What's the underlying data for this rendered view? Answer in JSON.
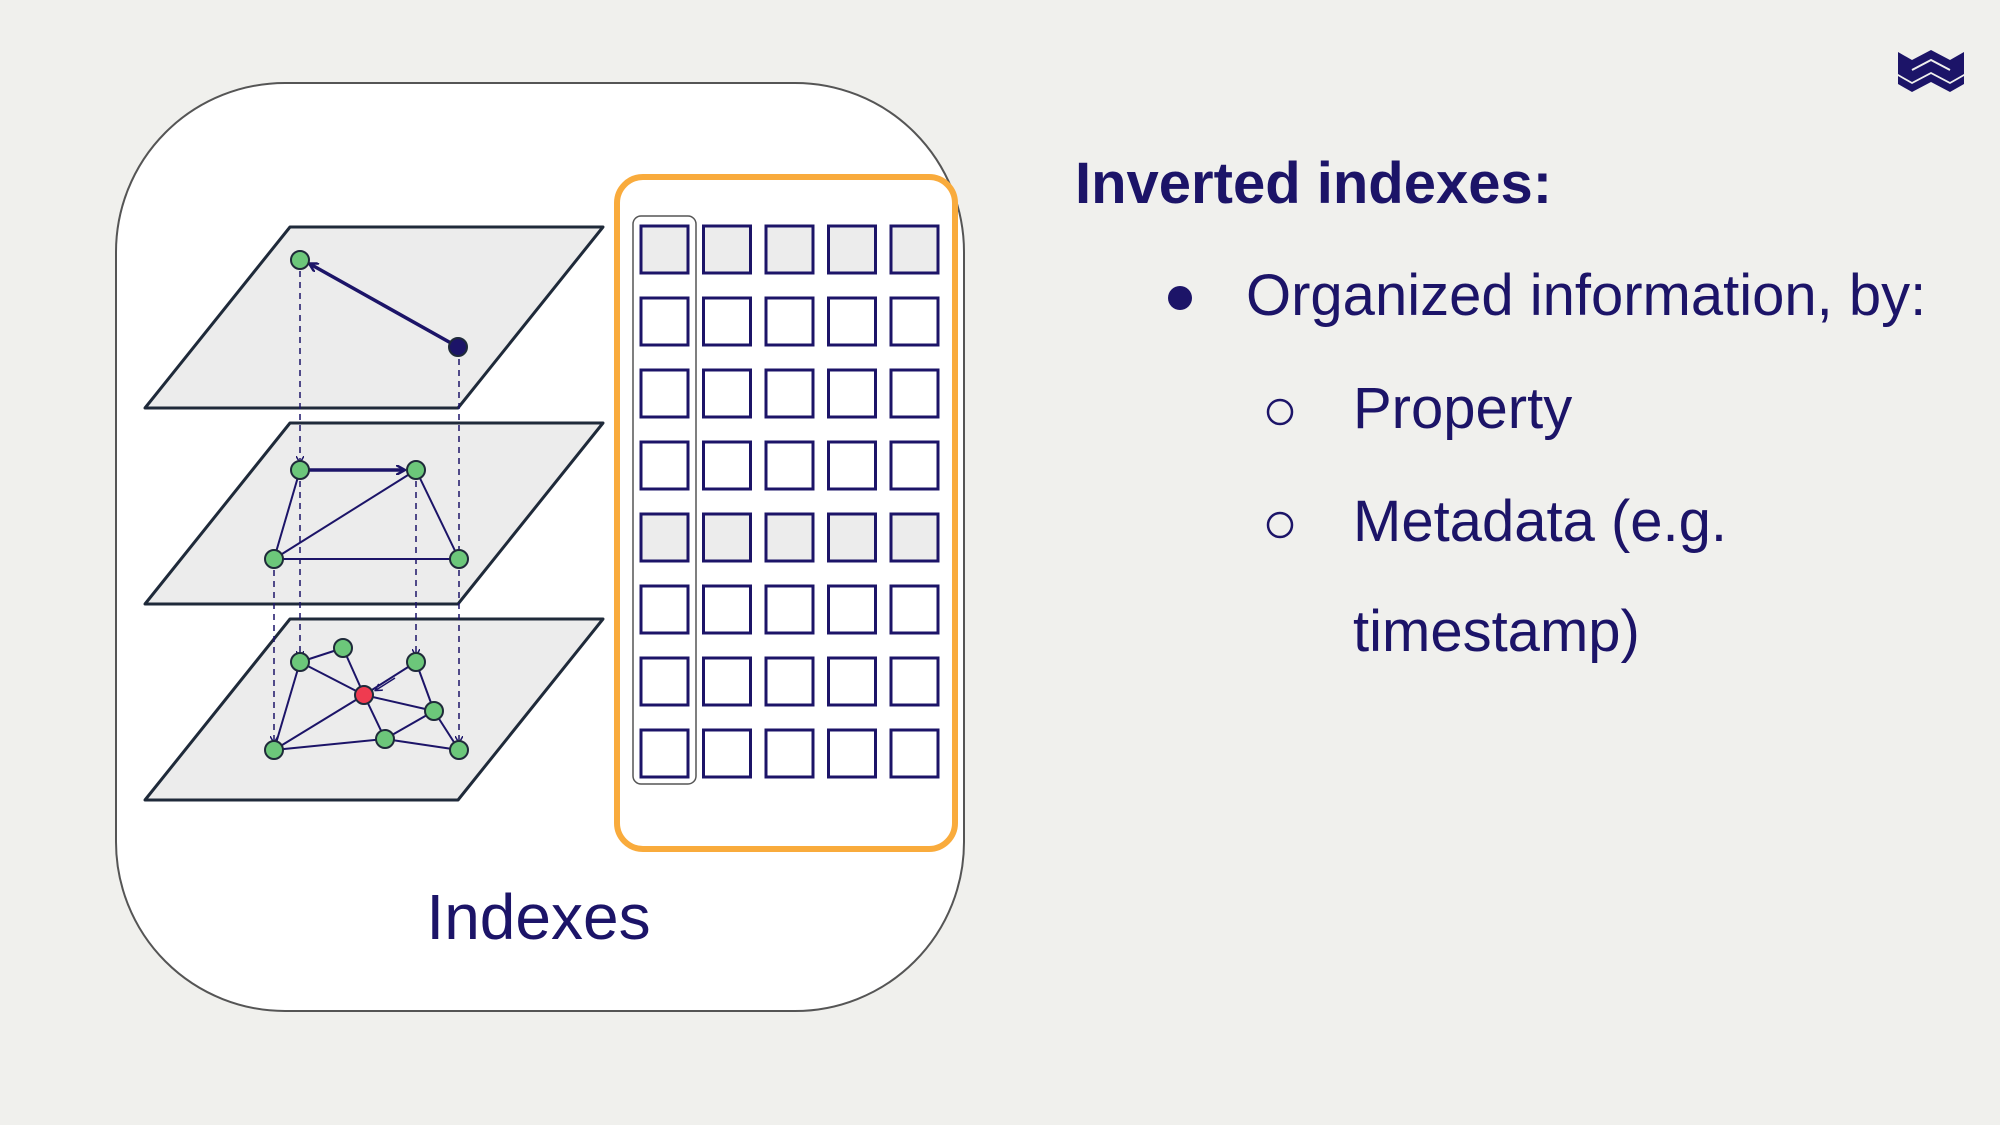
{
  "card": {
    "label": "Indexes"
  },
  "heading": "Inverted indexes:",
  "bullets": [
    {
      "level": 1,
      "text": "Organized information, by:"
    },
    {
      "level": 2,
      "text": "Property"
    },
    {
      "level": 2,
      "text": "Metadata (e.g."
    },
    {
      "level": 2,
      "text": "timestamp)"
    }
  ],
  "colors": {
    "text": "#1c1468",
    "accent_orange": "#f9ab3c",
    "node_green": "#6cc77a",
    "node_red": "#ef3b50",
    "layer_fill": "#ececec"
  },
  "icons": {
    "logo": "weaviate-logo-icon",
    "bullet": "disc-bullet-icon",
    "sub_bullet": "circle-bullet-icon"
  }
}
